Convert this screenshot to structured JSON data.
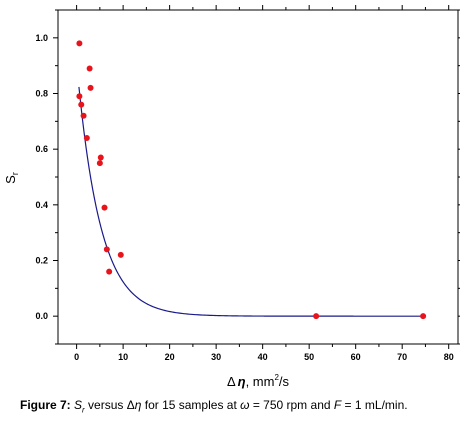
{
  "chart_data": {
    "type": "scatter",
    "xlabel_main": "Δ",
    "xlabel_symbol": "η",
    "xlabel_unit_pre": ", mm",
    "xlabel_unit_sup": "2",
    "xlabel_unit_post": "/s",
    "ylabel_main": "S",
    "ylabel_sub": "r",
    "xlim": [
      -4,
      82
    ],
    "ylim": [
      -0.1,
      1.1
    ],
    "x_ticks": [
      0,
      10,
      20,
      30,
      40,
      50,
      60,
      70,
      80
    ],
    "x_tick_labels": [
      "0",
      "10",
      "20",
      "30",
      "40",
      "50",
      "60",
      "70",
      "80"
    ],
    "y_ticks": [
      0.0,
      0.2,
      0.4,
      0.6,
      0.8,
      1.0
    ],
    "y_tick_labels": [
      "0.0",
      "0.2",
      "0.4",
      "0.6",
      "0.8",
      "1.0"
    ],
    "grid": false,
    "legend": "none",
    "series": [
      {
        "kind": "points",
        "color": "#e8141c",
        "x": [
          0.6,
          0.6,
          1.0,
          1.5,
          2.2,
          2.8,
          3.0,
          5.0,
          5.2,
          6.0,
          6.5,
          7.0,
          9.5,
          51.5,
          74.5
        ],
        "y": [
          0.98,
          0.79,
          0.76,
          0.72,
          0.64,
          0.89,
          0.82,
          0.55,
          0.57,
          0.39,
          0.24,
          0.16,
          0.22,
          0.0,
          0.0
        ]
      },
      {
        "kind": "fit",
        "color": "#1a1a8c",
        "model": "exponential_decay",
        "y0": 0.0,
        "A": 0.91,
        "t": 5.0,
        "x_range": [
          0.5,
          74.5
        ]
      }
    ]
  },
  "caption": {
    "label": "Figure 7:",
    "p1": " ",
    "s_symbol": "S",
    "s_sub": "r",
    "p2": " versus Δ",
    "eta": "η",
    "p3": " for 15 samples at ",
    "omega": "ω",
    "p4": " = 750 rpm and ",
    "f_symbol": "F",
    "p5": " = 1 mL/min."
  }
}
